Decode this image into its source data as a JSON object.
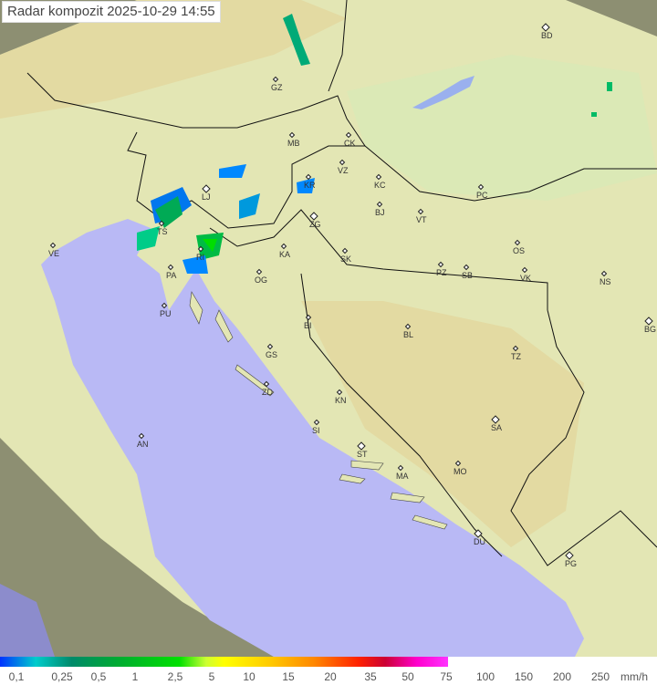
{
  "title": "Radar kompozit  2025-10-29   14:55",
  "colors": {
    "sea": "#b9b9f5",
    "land": "#e6ecb8",
    "outside": "#8d8f72",
    "radar_low": "#0088ff",
    "radar_mid": "#00aa55",
    "radar_high": "#00dd00"
  },
  "legend": {
    "labels": [
      "0,1",
      "0,25",
      "0,5",
      "1",
      "2,5",
      "5",
      "10",
      "15",
      "20",
      "35",
      "50",
      "75",
      "100",
      "150",
      "200",
      "250"
    ],
    "unit": "mm/h"
  },
  "cities": [
    "BD",
    "GZ",
    "MB",
    "CK",
    "VZ",
    "KR",
    "KC",
    "LJ",
    "PC",
    "ZG",
    "BJ",
    "VT",
    "TS",
    "VE",
    "KA",
    "SK",
    "OS",
    "RI",
    "PA",
    "PZ",
    "SB",
    "VK",
    "NS",
    "OG",
    "PU",
    "BG",
    "BI",
    "BL",
    "TZ",
    "GS",
    "ZD",
    "KN",
    "SA",
    "SI",
    "AN",
    "ST",
    "MA",
    "MO",
    "DU",
    "PG"
  ]
}
